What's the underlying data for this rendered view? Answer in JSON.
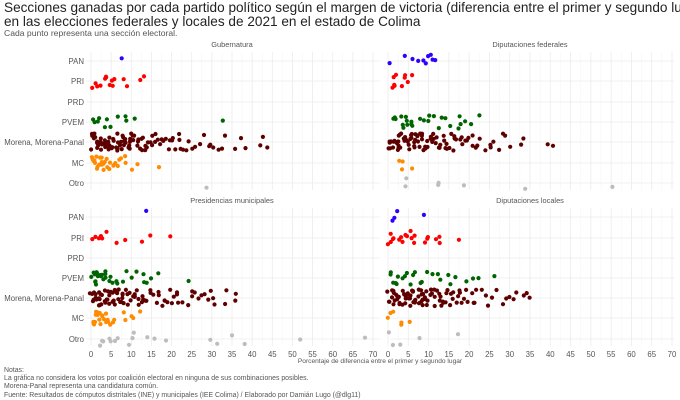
{
  "title_line1": "Secciones ganadas por cada partido político según el margen de victoria (diferencia entre el primer y segundo lugar)",
  "title_line2": "en las elecciones federales y locales de 2021 en el estado de Colima",
  "subtitle": "Cada punto representa una sección electoral.",
  "notes": [
    "Notas:",
    "La gráfica no considera los votos por coalición electoral en ninguna de sus combinaciones posibles.",
    "Morena-Panal representa una candidatura común.",
    "Fuente: Resultados de cómputos distritales (INE) y municipales (IEE Colima) / Elaborado por Damián Lugo (@dlg11)"
  ],
  "chart_data": {
    "type": "scatter",
    "subtype": "jittered strip plot, faceted 2x2",
    "xlabel": "Porcentaje de diferencia entre el primer y segundo lugar",
    "xlim": [
      0,
      70
    ],
    "x_ticks": [
      "0",
      "5",
      "10",
      "15",
      "20",
      "25",
      "30",
      "35",
      "40",
      "45",
      "50",
      "55",
      "60",
      "65",
      "70"
    ],
    "categories": [
      "PAN",
      "PRI",
      "PRD",
      "PVEM",
      "Morena, Morena-Panal",
      "MC",
      "Otro"
    ],
    "grid": true,
    "colors": {
      "PAN": "#2f00ff",
      "PRI": "#ff0000",
      "PRD": "#ffd700",
      "PVEM": "#006400",
      "Morena, Morena-Panal": "#5e0000",
      "MC": "#ff8c00",
      "Otro": "#bdbdbd"
    },
    "facets": [
      {
        "title": "Gubernatura",
        "series": {
          "PAN": [
            7.5
          ],
          "PRI": [
            0.2,
            1,
            1.8,
            2.2,
            3.3,
            3.5,
            3.7,
            4.9,
            5.1,
            5.5,
            5.6,
            8.3,
            8.6,
            12.3,
            12.9
          ],
          "PRD": [],
          "PVEM": [
            0.8,
            1,
            1.3,
            1.8,
            3.5,
            3.7,
            4.8,
            6.5,
            8.5,
            8.6,
            10.7,
            32.8
          ],
          "Morena, Morena-Panal": [
            0.1,
            0.3,
            0.5,
            0.7,
            0.9,
            1.1,
            1.3,
            1.5,
            1.7,
            1.9,
            2.1,
            2.3,
            2.5,
            2.7,
            2.9,
            3.1,
            3.3,
            3.5,
            3.7,
            3.9,
            4.1,
            4.3,
            4.5,
            4.7,
            4.9,
            5.1,
            5.3,
            5.5,
            5.7,
            5.9,
            6.1,
            6.3,
            6.5,
            6.7,
            6.9,
            7.1,
            7.3,
            7.5,
            7.7,
            7.9,
            8.1,
            8.3,
            8.5,
            8.7,
            8.9,
            9.1,
            9.3,
            9.5,
            9.7,
            9.9,
            10.1,
            10.4,
            10.7,
            11,
            11.3,
            11.6,
            11.9,
            12.2,
            12.5,
            12.8,
            13.1,
            13.4,
            13.7,
            14,
            14.3,
            14.6,
            15,
            15.4,
            15.8,
            16.2,
            16.6,
            17,
            17.5,
            18,
            18.5,
            19,
            19.5,
            20,
            20.5,
            21,
            21.5,
            22,
            22.5,
            23,
            23.5,
            24,
            25,
            26,
            27,
            28,
            29,
            30,
            30.5,
            31.5,
            32.5,
            33.5,
            36,
            37,
            38.5,
            41.8,
            42.5,
            43.5
          ],
          "MC": [
            0.2,
            0.5,
            0.8,
            1,
            1.2,
            1.4,
            1.6,
            1.8,
            2,
            2.2,
            2.4,
            2.6,
            2.8,
            3,
            3.2,
            3.5,
            3.8,
            4.1,
            4.4,
            4.8,
            5.2,
            5.6,
            6,
            6.5,
            7.2,
            7.8,
            8.3,
            8.6,
            10.5,
            11.3,
            16.5
          ],
          "Otro": [
            28.5
          ]
        }
      },
      {
        "title": "Diputaciones federales",
        "series": {
          "PAN": [
            0,
            4,
            5.8,
            7.3,
            8.4,
            9.7,
            10.2,
            10.6,
            10.6,
            11.3
          ],
          "PRI": [
            1,
            1.3,
            1.5,
            1.8,
            2,
            3.5,
            4,
            4.5,
            4.8,
            5.8
          ],
          "PRD": [],
          "PVEM": [
            1.5,
            2,
            2.2,
            3,
            3.8,
            4,
            4.5,
            4.8,
            5,
            5.5,
            6,
            6.2,
            8.3,
            9,
            10,
            10.5,
            11,
            12.5,
            13,
            14.5,
            15,
            17.5,
            17.8,
            18,
            19,
            20.5,
            22.5
          ],
          "Morena, Morena-Panal": [
            0.1,
            0.3,
            0.5,
            0.7,
            0.9,
            1.1,
            1.3,
            1.5,
            1.7,
            1.9,
            2.1,
            2.3,
            2.5,
            2.7,
            2.9,
            3.1,
            3.3,
            3.5,
            3.7,
            3.9,
            4.1,
            4.3,
            4.5,
            4.7,
            4.9,
            5.1,
            5.3,
            5.5,
            5.7,
            5.9,
            6.1,
            6.3,
            6.5,
            6.7,
            6.9,
            7.1,
            7.3,
            7.5,
            7.7,
            7.9,
            8.1,
            8.3,
            8.5,
            8.7,
            8.9,
            9.1,
            9.3,
            9.5,
            9.7,
            9.9,
            10.2,
            10.5,
            10.8,
            11.1,
            11.4,
            11.7,
            12,
            12.3,
            12.6,
            12.9,
            13.2,
            13.5,
            13.8,
            14.1,
            14.4,
            14.7,
            15,
            15.4,
            15.8,
            16.2,
            16.6,
            17,
            17.5,
            18,
            18.5,
            19,
            19.5,
            20,
            20.5,
            21,
            21.5,
            22,
            23,
            24,
            25,
            25.5,
            26,
            27,
            28,
            28.5,
            30,
            32.5,
            33.5,
            39,
            40.5
          ],
          "MC": [
            3,
            3.3,
            3.5,
            6
          ],
          "Otro": [
            4,
            4.5,
            12,
            12.5,
            19,
            33.5,
            55.5
          ]
        }
      },
      {
        "title": "Presidencias municipales",
        "series": {
          "PAN": [
            13.5
          ],
          "PRI": [
            0.5,
            1,
            2.3,
            2.5,
            3,
            3.5,
            6.2,
            8.8,
            12.3,
            14.5,
            19.8
          ],
          "PRD": [],
          "PVEM": [
            0.2,
            0.4,
            0.6,
            0.8,
            1,
            1.2,
            1.4,
            1.6,
            1.8,
            2,
            2.3,
            2.6,
            2.9,
            3.2,
            3.5,
            3.8,
            4.2,
            4.6,
            5,
            6,
            6.5,
            7.8,
            8.5,
            10.5,
            11.3,
            13,
            13.5,
            14,
            15.2,
            16.8,
            24.3
          ],
          "Morena, Morena-Panal": [
            0.1,
            0.3,
            0.5,
            0.7,
            0.9,
            1.1,
            1.3,
            1.5,
            1.7,
            1.9,
            2.1,
            2.3,
            2.5,
            2.7,
            2.9,
            3.1,
            3.3,
            3.5,
            3.7,
            3.9,
            4.1,
            4.3,
            4.5,
            4.7,
            4.9,
            5.1,
            5.3,
            5.5,
            5.7,
            5.9,
            6.1,
            6.3,
            6.5,
            6.7,
            6.9,
            7.1,
            7.3,
            7.5,
            7.7,
            7.9,
            8.1,
            8.4,
            8.7,
            9,
            9.3,
            9.6,
            9.9,
            10.2,
            10.5,
            10.8,
            11.1,
            11.4,
            11.7,
            12,
            12.4,
            12.8,
            13.2,
            13.6,
            14,
            14.5,
            15,
            15.5,
            16,
            16.5,
            17,
            17.5,
            18,
            18.5,
            19,
            19.5,
            20,
            20.5,
            21,
            21.5,
            22,
            23,
            24,
            25,
            25.5,
            26,
            27,
            27.5,
            28,
            29,
            30,
            30.5,
            31,
            33.5,
            34,
            35.5,
            36
          ],
          "MC": [
            0.2,
            0.4,
            0.6,
            0.8,
            1,
            1.2,
            1.4,
            1.6,
            1.8,
            2,
            2.2,
            2.5,
            2.8,
            3.1,
            3.4,
            3.8,
            4.2,
            4.6,
            5,
            5.4,
            5.8,
            7.8,
            8.5,
            10,
            10.5,
            12.5
          ],
          "Otro": [
            2.5,
            3,
            3,
            4.5,
            4.7,
            6.3,
            6.5,
            9.5,
            10.2,
            10.5,
            14.2,
            15.5,
            19,
            30,
            31,
            35,
            38.3,
            51.8,
            68
          ]
        }
      },
      {
        "title": "Diputaciones locales",
        "series": {
          "PAN": [
            1,
            1.5,
            2.3,
            8.5
          ],
          "PRI": [
            0.2,
            0.6,
            0.8,
            1.2,
            1.5,
            2.5,
            3,
            3.5,
            4.5,
            5,
            5.5,
            5.8,
            6.2,
            6.8,
            9,
            9.5,
            10,
            11.5,
            12.5,
            13,
            17.5
          ],
          "PRD": [],
          "PVEM": [
            0.5,
            1,
            1.5,
            2,
            2.5,
            2.5,
            4,
            4.5,
            5,
            5.5,
            6,
            6.5,
            8,
            8.5,
            9.5,
            11,
            12.5,
            13,
            14.5,
            15,
            16.3,
            19.5,
            21,
            22,
            26
          ],
          "Morena, Morena-Panal": [
            0.1,
            0.3,
            0.5,
            0.7,
            0.9,
            1.1,
            1.3,
            1.5,
            1.7,
            1.9,
            2.1,
            2.3,
            2.5,
            2.7,
            2.9,
            3.1,
            3.3,
            3.5,
            3.7,
            3.9,
            4.1,
            4.3,
            4.5,
            4.7,
            4.9,
            5.1,
            5.3,
            5.5,
            5.7,
            5.9,
            6.1,
            6.3,
            6.5,
            6.7,
            6.9,
            7.1,
            7.3,
            7.5,
            7.7,
            7.9,
            8.1,
            8.3,
            8.5,
            8.7,
            8.9,
            9.1,
            9.3,
            9.5,
            9.7,
            9.9,
            10.2,
            10.5,
            10.8,
            11.1,
            11.4,
            11.7,
            12,
            12.3,
            12.6,
            12.9,
            13.2,
            13.5,
            13.8,
            14.1,
            14.4,
            14.7,
            15,
            15.4,
            15.8,
            16.2,
            16.6,
            17,
            17.5,
            18,
            18.5,
            19,
            19.5,
            20,
            20.5,
            21,
            21.5,
            22,
            23,
            24,
            25,
            26,
            27,
            28,
            29,
            30,
            31,
            32,
            33.5,
            34.5,
            35
          ],
          "MC": [
            0.2,
            0.5,
            1,
            3,
            3.5,
            5.5
          ],
          "Otro": [
            0.5,
            1,
            3,
            7.5,
            17.5
          ]
        }
      }
    ]
  }
}
